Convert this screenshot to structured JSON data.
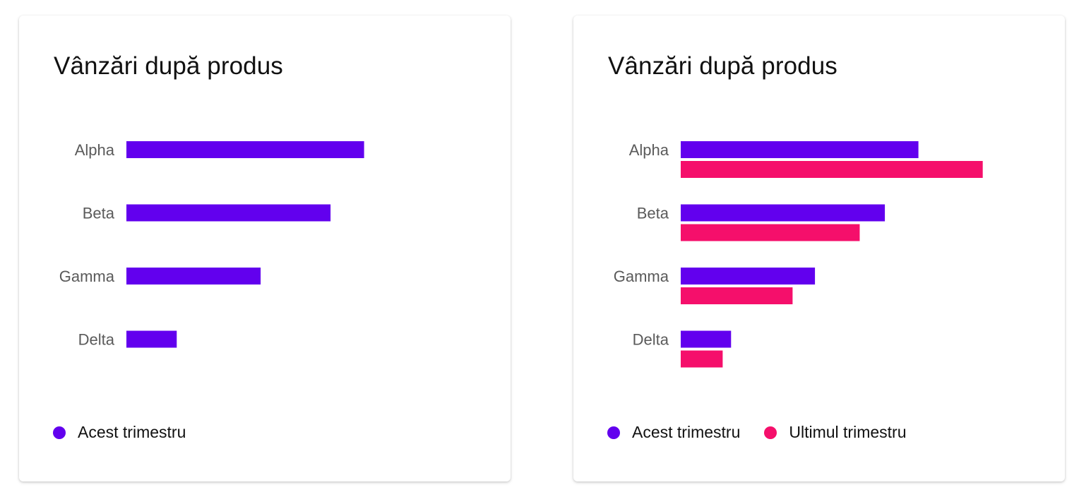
{
  "colors": {
    "acest_trimestru": "#6200EE",
    "ultimul_trimestru": "#F50F6B"
  },
  "chart_data": [
    {
      "type": "bar",
      "orientation": "horizontal",
      "title": "Vânzări după produs",
      "categories": [
        "Alpha",
        "Beta",
        "Gamma",
        "Delta"
      ],
      "series": [
        {
          "name": "Acest trimestru",
          "values": [
            85,
            73,
            48,
            18
          ],
          "color": "#6200EE"
        }
      ],
      "xlim": [
        0,
        125
      ],
      "grid": false,
      "legend_position": "bottom-left"
    },
    {
      "type": "bar",
      "orientation": "horizontal",
      "title": "Vânzări după produs",
      "categories": [
        "Alpha",
        "Beta",
        "Gamma",
        "Delta"
      ],
      "series": [
        {
          "name": "Acest trimestru",
          "values": [
            85,
            73,
            48,
            18
          ],
          "color": "#6200EE"
        },
        {
          "name": "Ultimul trimestru",
          "values": [
            108,
            64,
            40,
            15
          ],
          "color": "#F50F6B"
        }
      ],
      "xlim": [
        0,
        125
      ],
      "grid": false,
      "legend_position": "bottom-left"
    }
  ]
}
